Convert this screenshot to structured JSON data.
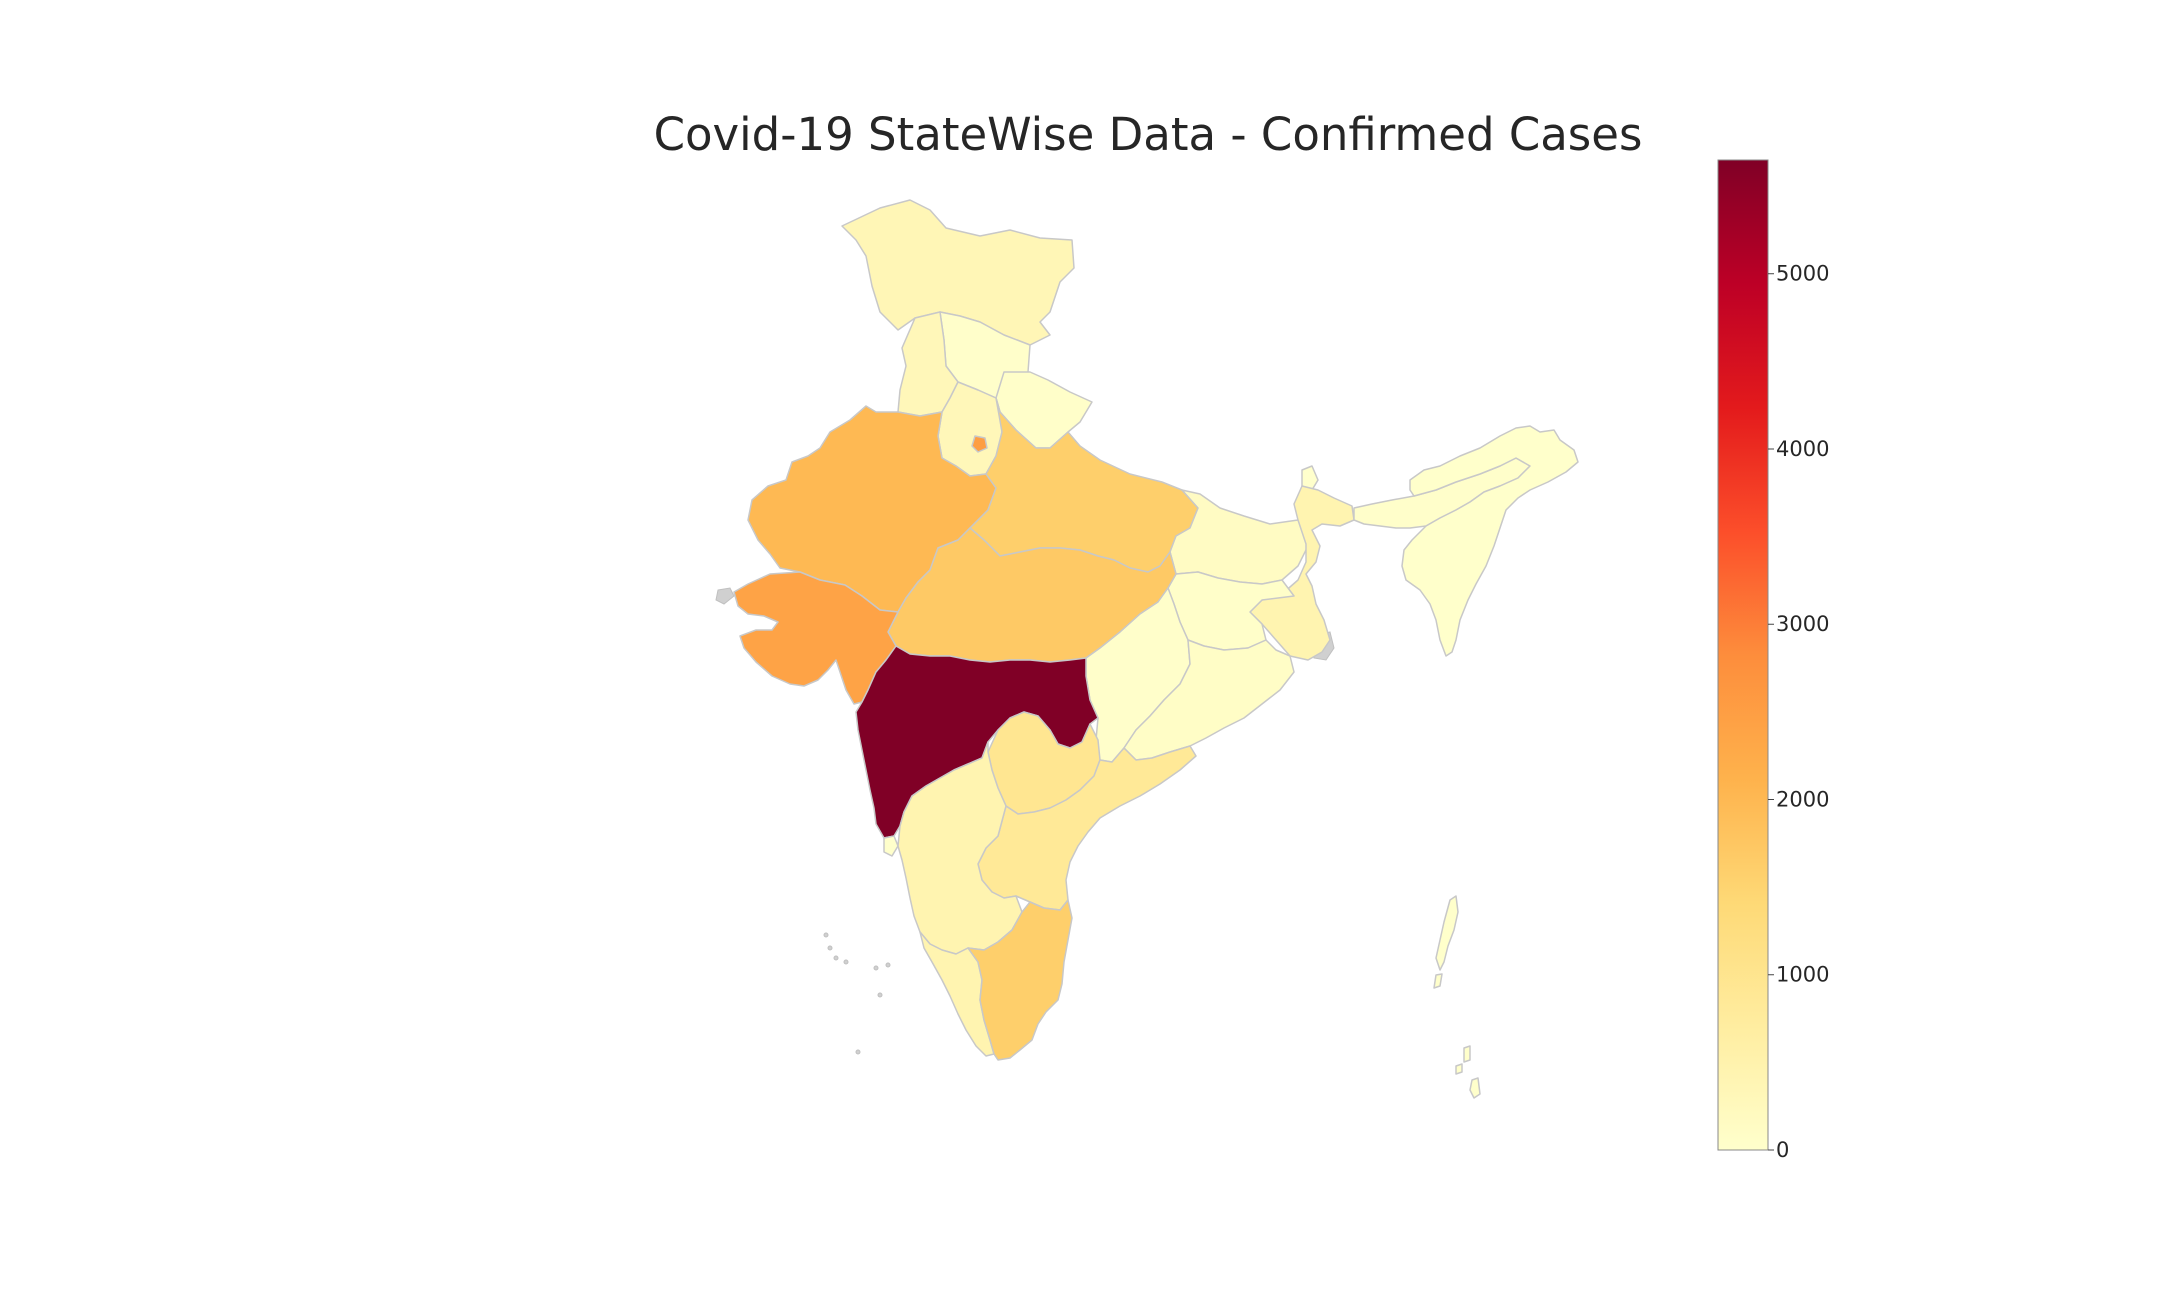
{
  "title": "Covid-19 StateWise Data - Confirmed Cases",
  "colormap": {
    "name": "YlOrRd",
    "stops": [
      "#ffffcc",
      "#ffeda0",
      "#fed976",
      "#feb24c",
      "#fd8d3c",
      "#fc4e2a",
      "#e31a1c",
      "#bd0026",
      "#800026"
    ],
    "vmin": 0,
    "vmax": 5649,
    "ticks": [
      0,
      1000,
      2000,
      3000,
      4000,
      5000
    ],
    "tick_labels": [
      "0",
      "1000",
      "2000",
      "3000",
      "4000",
      "5000"
    ]
  },
  "states": [
    {
      "id": "jammu-kashmir",
      "value": 350
    },
    {
      "id": "himachal-pradesh",
      "value": 40
    },
    {
      "id": "punjab",
      "value": 300
    },
    {
      "id": "haryana",
      "value": 300
    },
    {
      "id": "delhi",
      "value": 2500
    },
    {
      "id": "uttarakhand",
      "value": 50
    },
    {
      "id": "rajasthan",
      "value": 2000
    },
    {
      "id": "uttar-pradesh",
      "value": 1600
    },
    {
      "id": "gujarat",
      "value": 2400
    },
    {
      "id": "madhya-pradesh",
      "value": 1700
    },
    {
      "id": "maharashtra",
      "value": 5649
    },
    {
      "id": "bihar",
      "value": 150
    },
    {
      "id": "jharkhand",
      "value": 50
    },
    {
      "id": "west-bengal",
      "value": 450
    },
    {
      "id": "chhattisgarh",
      "value": 40
    },
    {
      "id": "odisha",
      "value": 90
    },
    {
      "id": "telangana",
      "value": 950
    },
    {
      "id": "andhra-pradesh",
      "value": 850
    },
    {
      "id": "karnataka",
      "value": 450
    },
    {
      "id": "kerala",
      "value": 450
    },
    {
      "id": "tamil-nadu",
      "value": 1600
    },
    {
      "id": "goa",
      "value": 10
    },
    {
      "id": "sikkim",
      "value": 0
    },
    {
      "id": "assam",
      "value": 35
    },
    {
      "id": "northeast",
      "value": 10
    },
    {
      "id": "andaman-nicobar",
      "value": 15
    }
  ]
}
